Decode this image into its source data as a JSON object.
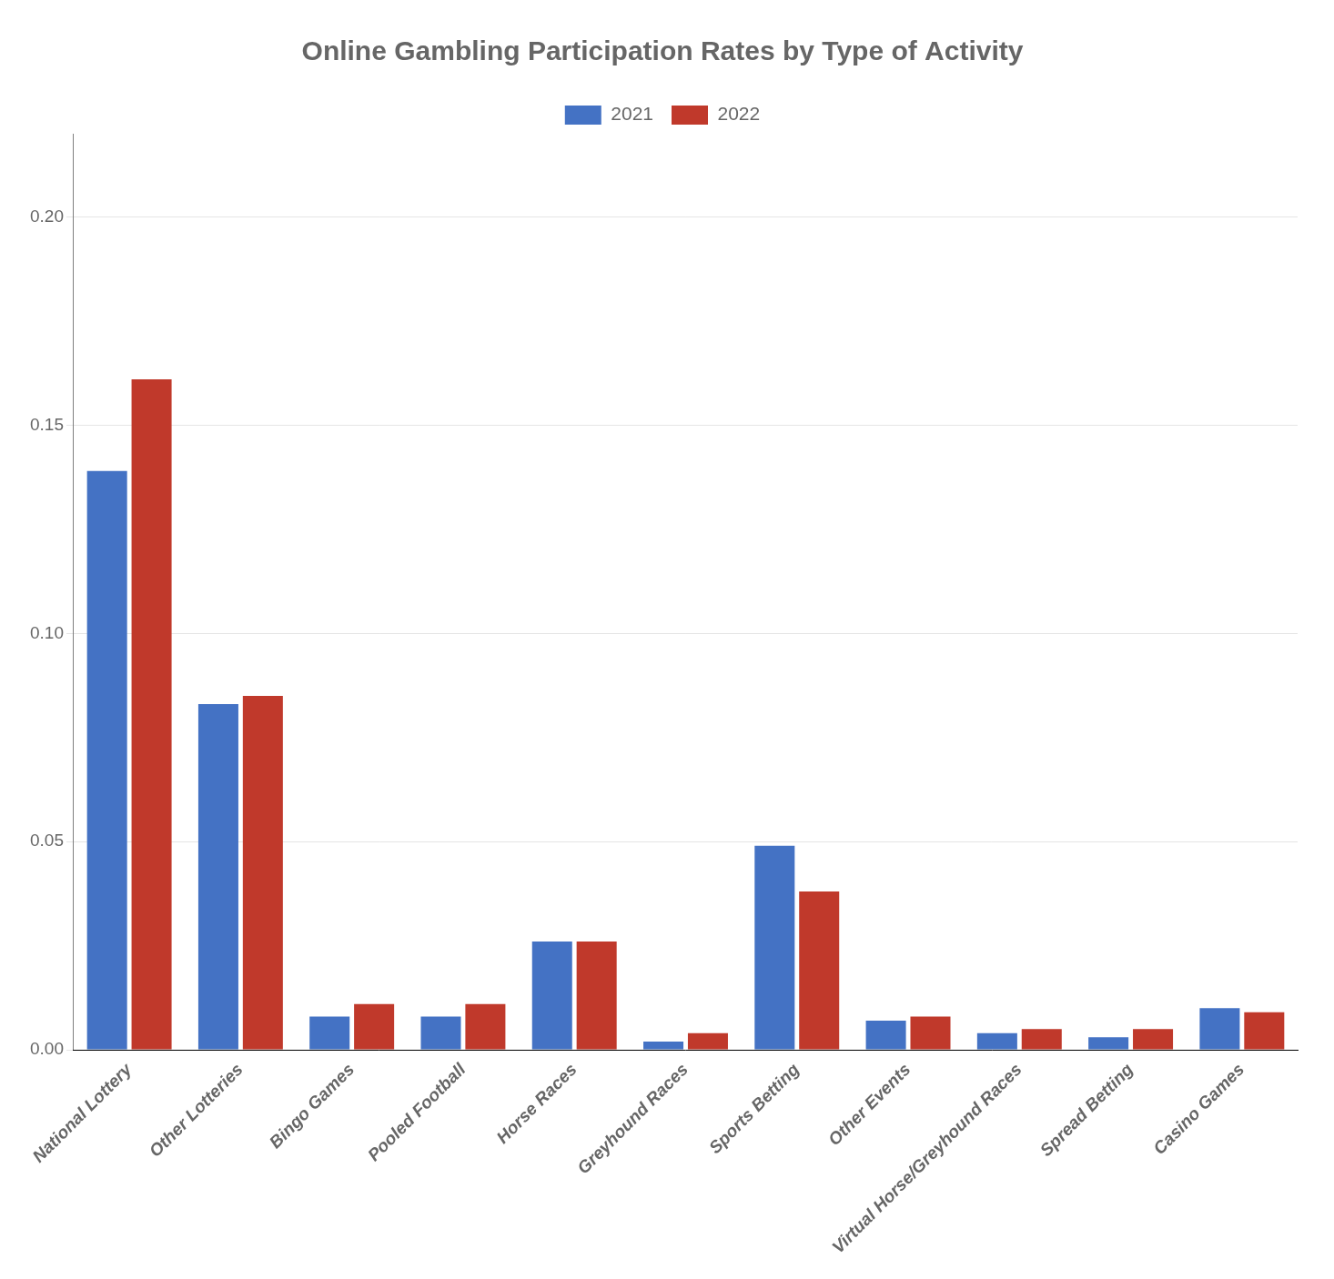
{
  "chart_data": {
    "type": "bar",
    "title": "Online Gambling Participation Rates by Type of Activity",
    "categories": [
      "National Lottery",
      "Other Lotteries",
      "Bingo Games",
      "Pooled Football",
      "Horse Races",
      "Greyhound Races",
      "Sports Betting",
      "Other Events",
      "Virtual Horse/Greyhound Races",
      "Spread Betting",
      "Casino Games"
    ],
    "series": [
      {
        "name": "2021",
        "color": "#4472C4",
        "values": [
          0.139,
          0.083,
          0.008,
          0.008,
          0.026,
          0.002,
          0.049,
          0.007,
          0.004,
          0.003,
          0.01
        ]
      },
      {
        "name": "2022",
        "color": "#C0392B",
        "values": [
          0.161,
          0.085,
          0.011,
          0.011,
          0.026,
          0.004,
          0.038,
          0.008,
          0.005,
          0.005,
          0.009
        ]
      }
    ],
    "ylim": [
      0,
      0.22
    ],
    "yticks": [
      {
        "value": 0,
        "label": "0.00"
      },
      0.05,
      {
        "value": 0.1,
        "label": "0.10"
      },
      0.15,
      {
        "value": 0.2,
        "label": "0.20"
      }
    ],
    "grid": true,
    "legend": "top"
  }
}
